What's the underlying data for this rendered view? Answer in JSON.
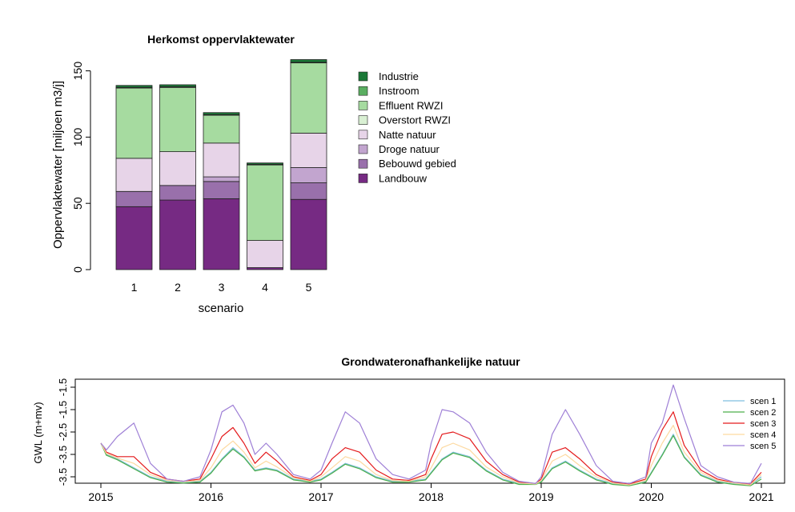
{
  "chart_data": [
    {
      "type": "bar",
      "stacked": true,
      "title": "Herkomst oppervlaktewater",
      "xlabel": "scenario",
      "ylabel": "Oppervlaktewater [miljoen m3/j]",
      "categories": [
        "1",
        "2",
        "3",
        "4",
        "5"
      ],
      "ylim": [
        0,
        160
      ],
      "yticks": [
        "0",
        "50",
        "100",
        "150"
      ],
      "legend_position": "right",
      "series": [
        {
          "name": "Landbouw",
          "color": "#762a83",
          "values": [
            47.5,
            52.5,
            53.5,
            1.5,
            53
          ]
        },
        {
          "name": "Bebouwd gebied",
          "color": "#9970ab",
          "values": [
            11.5,
            11,
            13,
            0,
            12.5
          ]
        },
        {
          "name": "Droge natuur",
          "color": "#c2a5cf",
          "values": [
            0,
            0,
            3.5,
            0,
            11.5
          ]
        },
        {
          "name": "Natte natuur",
          "color": "#e7d4e8",
          "values": [
            25,
            25.5,
            25.5,
            20.5,
            26
          ]
        },
        {
          "name": "Overstort RWZI",
          "color": "#d9f0d3",
          "values": [
            0,
            0,
            0,
            0,
            0
          ]
        },
        {
          "name": "Effluent RWZI",
          "color": "#a6dba0",
          "values": [
            53,
            48.5,
            21,
            57,
            53
          ]
        },
        {
          "name": "Instroom",
          "color": "#5aae61",
          "values": [
            0.5,
            0.5,
            0.5,
            0.5,
            0.5
          ]
        },
        {
          "name": "Industrie",
          "color": "#1b7837",
          "values": [
            1.5,
            1.5,
            1.5,
            1,
            2
          ]
        }
      ]
    },
    {
      "type": "line",
      "title": "Grondwateronafhankelijke natuur",
      "ylabel": "GWL (m+mv)",
      "xlim": [
        2015,
        2021
      ],
      "ylim": [
        -3.7,
        -1.4
      ],
      "xticks": [
        "2015",
        "2016",
        "2017",
        "2018",
        "2019",
        "2020",
        "2021"
      ],
      "yticks": [
        "-1.5",
        "-2.5",
        "-3.5"
      ],
      "yminor_ticks": [
        -1.5,
        -2,
        -2.5,
        -3,
        -3.5
      ],
      "ytick_labels": [
        "-1.5",
        "-1.5",
        "-2.5",
        "-3.5",
        "-3.5"
      ],
      "legend_position": "right",
      "series": [
        {
          "name": "scen 1",
          "color": "#7fbfdf",
          "x": [
            2015,
            2015.05,
            2015.15,
            2015.3,
            2015.45,
            2015.6,
            2015.75,
            2015.9,
            2016,
            2016.1,
            2016.2,
            2016.3,
            2016.4,
            2016.5,
            2016.6,
            2016.75,
            2016.9,
            2017,
            2017.1,
            2017.22,
            2017.35,
            2017.5,
            2017.65,
            2017.8,
            2017.95,
            2018,
            2018.1,
            2018.2,
            2018.35,
            2018.5,
            2018.65,
            2018.8,
            2018.95,
            2019,
            2019.1,
            2019.22,
            2019.35,
            2019.5,
            2019.65,
            2019.8,
            2019.95,
            2020,
            2020.1,
            2020.2,
            2020.3,
            2020.45,
            2020.6,
            2020.75,
            2020.9,
            2021
          ],
          "y": [
            -2.75,
            -3.0,
            -3.1,
            -3.3,
            -3.5,
            -3.6,
            -3.62,
            -3.6,
            -3.4,
            -3.1,
            -2.85,
            -3.05,
            -3.35,
            -3.3,
            -3.35,
            -3.55,
            -3.6,
            -3.55,
            -3.4,
            -3.2,
            -3.3,
            -3.5,
            -3.6,
            -3.6,
            -3.55,
            -3.4,
            -3.1,
            -2.95,
            -3.05,
            -3.35,
            -3.55,
            -3.65,
            -3.65,
            -3.6,
            -3.3,
            -3.15,
            -3.35,
            -3.55,
            -3.65,
            -3.68,
            -3.6,
            -3.4,
            -3.0,
            -2.55,
            -3.05,
            -3.45,
            -3.6,
            -3.65,
            -3.68,
            -3.5
          ]
        },
        {
          "name": "scen 2",
          "color": "#4daf4a",
          "x": [
            2015,
            2015.05,
            2015.15,
            2015.3,
            2015.45,
            2015.6,
            2015.75,
            2015.9,
            2016,
            2016.1,
            2016.2,
            2016.3,
            2016.4,
            2016.5,
            2016.6,
            2016.75,
            2016.9,
            2017,
            2017.1,
            2017.22,
            2017.35,
            2017.5,
            2017.65,
            2017.8,
            2017.95,
            2018,
            2018.1,
            2018.2,
            2018.35,
            2018.5,
            2018.65,
            2018.8,
            2018.95,
            2019,
            2019.1,
            2019.22,
            2019.35,
            2019.5,
            2019.65,
            2019.8,
            2019.95,
            2020,
            2020.1,
            2020.2,
            2020.3,
            2020.45,
            2020.6,
            2020.75,
            2020.9,
            2021
          ],
          "y": [
            -2.75,
            -3.02,
            -3.12,
            -3.32,
            -3.52,
            -3.62,
            -3.64,
            -3.62,
            -3.42,
            -3.12,
            -2.88,
            -3.07,
            -3.37,
            -3.32,
            -3.37,
            -3.57,
            -3.62,
            -3.57,
            -3.42,
            -3.22,
            -3.32,
            -3.52,
            -3.62,
            -3.62,
            -3.57,
            -3.42,
            -3.12,
            -2.97,
            -3.07,
            -3.37,
            -3.57,
            -3.67,
            -3.67,
            -3.62,
            -3.32,
            -3.17,
            -3.37,
            -3.57,
            -3.67,
            -3.7,
            -3.62,
            -3.42,
            -3.02,
            -2.58,
            -3.07,
            -3.47,
            -3.62,
            -3.67,
            -3.7,
            -3.55
          ]
        },
        {
          "name": "scen 3",
          "color": "#e41a1c",
          "x": [
            2015,
            2015.05,
            2015.15,
            2015.3,
            2015.45,
            2015.6,
            2015.75,
            2015.9,
            2016,
            2016.1,
            2016.2,
            2016.3,
            2016.4,
            2016.5,
            2016.6,
            2016.75,
            2016.9,
            2017,
            2017.1,
            2017.22,
            2017.35,
            2017.5,
            2017.65,
            2017.8,
            2017.95,
            2018,
            2018.1,
            2018.2,
            2018.35,
            2018.5,
            2018.65,
            2018.8,
            2018.95,
            2019,
            2019.1,
            2019.22,
            2019.35,
            2019.5,
            2019.65,
            2019.8,
            2019.95,
            2020,
            2020.1,
            2020.2,
            2020.3,
            2020.45,
            2020.6,
            2020.75,
            2020.9,
            2021
          ],
          "y": [
            -2.75,
            -2.95,
            -3.05,
            -3.05,
            -3.4,
            -3.55,
            -3.6,
            -3.55,
            -3.1,
            -2.6,
            -2.4,
            -2.75,
            -3.2,
            -2.95,
            -3.15,
            -3.5,
            -3.58,
            -3.45,
            -3.1,
            -2.85,
            -2.95,
            -3.35,
            -3.55,
            -3.58,
            -3.45,
            -3.1,
            -2.55,
            -2.5,
            -2.65,
            -3.15,
            -3.45,
            -3.62,
            -3.65,
            -3.55,
            -2.95,
            -2.85,
            -3.1,
            -3.45,
            -3.62,
            -3.66,
            -3.55,
            -3.05,
            -2.45,
            -2.05,
            -2.8,
            -3.35,
            -3.55,
            -3.63,
            -3.66,
            -3.4
          ]
        },
        {
          "name": "scen 4",
          "color": "#fdd9a0",
          "x": [
            2015,
            2015.05,
            2015.15,
            2015.3,
            2015.45,
            2015.6,
            2015.75,
            2015.9,
            2016,
            2016.1,
            2016.2,
            2016.3,
            2016.4,
            2016.5,
            2016.6,
            2016.75,
            2016.9,
            2017,
            2017.1,
            2017.22,
            2017.35,
            2017.5,
            2017.65,
            2017.8,
            2017.95,
            2018,
            2018.1,
            2018.2,
            2018.35,
            2018.5,
            2018.65,
            2018.8,
            2018.95,
            2019,
            2019.1,
            2019.22,
            2019.35,
            2019.5,
            2019.65,
            2019.8,
            2019.95,
            2020,
            2020.1,
            2020.2,
            2020.3,
            2020.45,
            2020.6,
            2020.75,
            2020.9,
            2021
          ],
          "y": [
            -2.75,
            -2.98,
            -3.08,
            -3.2,
            -3.45,
            -3.58,
            -3.61,
            -3.58,
            -3.3,
            -2.9,
            -2.7,
            -2.95,
            -3.3,
            -3.15,
            -3.28,
            -3.52,
            -3.6,
            -3.5,
            -3.3,
            -3.05,
            -3.15,
            -3.45,
            -3.58,
            -3.6,
            -3.5,
            -3.3,
            -2.85,
            -2.75,
            -2.9,
            -3.28,
            -3.5,
            -3.64,
            -3.66,
            -3.58,
            -3.15,
            -3.0,
            -3.25,
            -3.5,
            -3.64,
            -3.68,
            -3.58,
            -3.25,
            -2.75,
            -2.35,
            -2.95,
            -3.4,
            -3.58,
            -3.64,
            -3.68,
            -3.45
          ]
        },
        {
          "name": "scen 5",
          "color": "#9e7fd6",
          "x": [
            2015,
            2015.05,
            2015.15,
            2015.25,
            2015.3,
            2015.45,
            2015.6,
            2015.75,
            2015.9,
            2016,
            2016.1,
            2016.2,
            2016.3,
            2016.4,
            2016.5,
            2016.6,
            2016.75,
            2016.9,
            2017,
            2017.1,
            2017.22,
            2017.35,
            2017.5,
            2017.65,
            2017.8,
            2017.95,
            2018,
            2018.1,
            2018.2,
            2018.35,
            2018.5,
            2018.65,
            2018.8,
            2018.95,
            2019,
            2019.1,
            2019.22,
            2019.35,
            2019.5,
            2019.65,
            2019.8,
            2019.95,
            2020,
            2020.1,
            2020.2,
            2020.3,
            2020.45,
            2020.6,
            2020.75,
            2020.9,
            2021
          ],
          "y": [
            -2.75,
            -2.9,
            -2.6,
            -2.4,
            -2.3,
            -3.2,
            -3.55,
            -3.6,
            -3.5,
            -2.9,
            -2.05,
            -1.9,
            -2.3,
            -3.0,
            -2.75,
            -3.0,
            -3.45,
            -3.55,
            -3.35,
            -2.75,
            -2.05,
            -2.3,
            -3.1,
            -3.45,
            -3.55,
            -3.35,
            -2.75,
            -2.0,
            -2.05,
            -2.3,
            -2.95,
            -3.4,
            -3.6,
            -3.65,
            -3.5,
            -2.55,
            -2.0,
            -2.55,
            -3.25,
            -3.6,
            -3.65,
            -3.5,
            -2.75,
            -2.3,
            -1.45,
            -2.2,
            -3.25,
            -3.5,
            -3.62,
            -3.65,
            -3.2
          ]
        }
      ]
    }
  ]
}
